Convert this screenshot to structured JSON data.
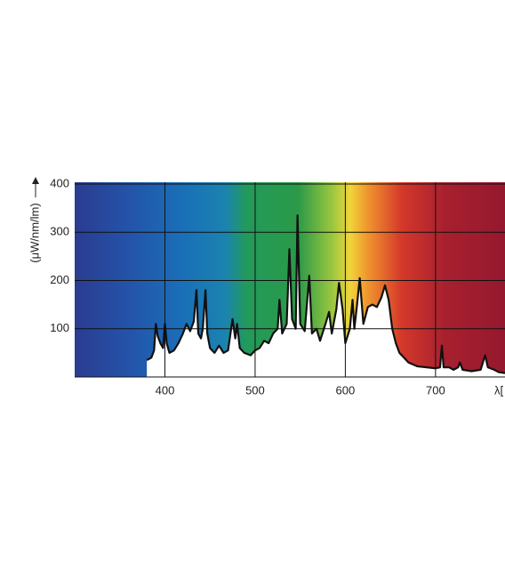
{
  "chart_data": {
    "type": "area",
    "y_label": "(μW/nm/lm)",
    "x_label": "λ[",
    "xlim": [
      300,
      777
    ],
    "ylim": [
      0,
      400
    ],
    "xticks": [
      400,
      500,
      600,
      700
    ],
    "yticks": [
      100,
      200,
      300,
      400
    ],
    "grid": true,
    "series": [
      {
        "color": "#111111",
        "x": [
          380,
          385,
          388,
          390,
          392,
          395,
          398,
          400,
          402,
          405,
          410,
          415,
          420,
          424,
          428,
          432,
          435,
          437,
          440,
          442,
          445,
          447,
          450,
          455,
          460,
          465,
          470,
          475,
          478,
          480,
          483,
          488,
          495,
          500,
          505,
          510,
          515,
          520,
          525,
          527,
          530,
          535,
          538,
          541,
          545,
          547,
          550,
          555,
          560,
          563,
          568,
          572,
          578,
          582,
          585,
          590,
          593,
          597,
          600,
          605,
          608,
          610,
          613,
          616,
          620,
          625,
          630,
          635,
          640,
          644,
          648,
          652,
          656,
          660,
          665,
          670,
          680,
          690,
          700,
          705,
          707,
          709,
          715,
          720,
          725,
          727,
          730,
          740,
          750,
          755,
          758,
          765,
          770,
          777
        ],
        "values": [
          35,
          40,
          55,
          110,
          85,
          70,
          60,
          110,
          70,
          50,
          55,
          70,
          90,
          110,
          95,
          115,
          180,
          90,
          80,
          100,
          180,
          90,
          60,
          50,
          65,
          50,
          55,
          120,
          80,
          110,
          60,
          50,
          45,
          55,
          60,
          75,
          70,
          90,
          100,
          160,
          90,
          110,
          265,
          120,
          100,
          335,
          110,
          95,
          210,
          90,
          100,
          75,
          110,
          135,
          90,
          140,
          195,
          140,
          70,
          100,
          160,
          100,
          150,
          205,
          110,
          145,
          150,
          145,
          165,
          190,
          160,
          100,
          70,
          50,
          40,
          30,
          22,
          20,
          18,
          20,
          65,
          20,
          20,
          15,
          20,
          30,
          15,
          12,
          15,
          45,
          20,
          15,
          10,
          8
        ]
      }
    ]
  }
}
